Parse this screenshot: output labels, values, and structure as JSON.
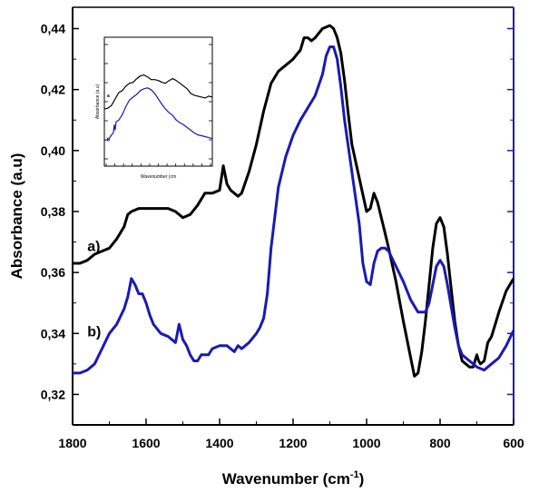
{
  "chart_data": [
    {
      "type": "line",
      "title": "",
      "xlabel": "Wavenumber (cm",
      "xlabel_sup": "-1",
      "xlabel_close": ")",
      "ylabel": "Absorbance (a.u)",
      "xlim": [
        1800,
        600
      ],
      "ylim": [
        0.31,
        0.447
      ],
      "x_ticks": [
        1800,
        1600,
        1400,
        1200,
        1000,
        800,
        600
      ],
      "x_tick_labels": [
        "1800",
        "1600",
        "1400",
        "1200",
        "1000",
        "800",
        "600"
      ],
      "y_ticks": [
        0.32,
        0.34,
        0.36,
        0.38,
        0.4,
        0.42,
        0.44
      ],
      "y_tick_labels": [
        "0,32",
        "0,34",
        "0,36",
        "0,38",
        "0,40",
        "0,42",
        "0,44"
      ],
      "grid": false,
      "colors": {
        "a": "#000000",
        "b": "#1a1ab4",
        "right_axis": "#1a1ab4"
      },
      "series": [
        {
          "name": "a)",
          "x": [
            1800,
            1780,
            1760,
            1740,
            1720,
            1700,
            1680,
            1660,
            1650,
            1640,
            1620,
            1600,
            1580,
            1560,
            1540,
            1520,
            1500,
            1480,
            1460,
            1440,
            1420,
            1400,
            1390,
            1380,
            1370,
            1360,
            1350,
            1340,
            1320,
            1300,
            1280,
            1260,
            1240,
            1220,
            1200,
            1180,
            1170,
            1160,
            1150,
            1140,
            1120,
            1100,
            1090,
            1080,
            1070,
            1060,
            1050,
            1040,
            1020,
            1000,
            990,
            980,
            970,
            960,
            950,
            940,
            920,
            900,
            880,
            870,
            860,
            850,
            840,
            830,
            820,
            810,
            800,
            790,
            780,
            770,
            760,
            750,
            740,
            720,
            710,
            700,
            695,
            690,
            680,
            670,
            660,
            650,
            640,
            620,
            600
          ],
          "y": [
            0.363,
            0.363,
            0.364,
            0.366,
            0.367,
            0.368,
            0.371,
            0.375,
            0.379,
            0.38,
            0.381,
            0.381,
            0.381,
            0.381,
            0.381,
            0.38,
            0.378,
            0.379,
            0.382,
            0.386,
            0.386,
            0.387,
            0.395,
            0.389,
            0.387,
            0.386,
            0.385,
            0.386,
            0.393,
            0.402,
            0.413,
            0.422,
            0.426,
            0.428,
            0.43,
            0.433,
            0.437,
            0.437,
            0.436,
            0.437,
            0.44,
            0.441,
            0.44,
            0.437,
            0.432,
            0.423,
            0.412,
            0.402,
            0.391,
            0.38,
            0.381,
            0.386,
            0.383,
            0.378,
            0.373,
            0.368,
            0.357,
            0.344,
            0.332,
            0.326,
            0.327,
            0.334,
            0.344,
            0.356,
            0.368,
            0.376,
            0.378,
            0.375,
            0.366,
            0.355,
            0.344,
            0.336,
            0.331,
            0.329,
            0.329,
            0.333,
            0.331,
            0.33,
            0.331,
            0.337,
            0.339,
            0.343,
            0.347,
            0.354,
            0.358
          ]
        },
        {
          "name": "b)",
          "x": [
            1800,
            1780,
            1760,
            1740,
            1720,
            1700,
            1680,
            1660,
            1650,
            1640,
            1630,
            1620,
            1610,
            1600,
            1590,
            1580,
            1560,
            1540,
            1520,
            1510,
            1500,
            1490,
            1480,
            1470,
            1460,
            1450,
            1440,
            1430,
            1420,
            1400,
            1380,
            1360,
            1350,
            1340,
            1320,
            1300,
            1290,
            1280,
            1270,
            1260,
            1240,
            1220,
            1200,
            1180,
            1160,
            1140,
            1120,
            1110,
            1100,
            1090,
            1080,
            1070,
            1060,
            1040,
            1020,
            1010,
            1000,
            990,
            980,
            970,
            960,
            950,
            940,
            920,
            900,
            880,
            860,
            840,
            830,
            820,
            810,
            800,
            790,
            780,
            770,
            760,
            750,
            740,
            720,
            700,
            680,
            670,
            660,
            640,
            620,
            600
          ],
          "y": [
            0.327,
            0.327,
            0.328,
            0.33,
            0.335,
            0.34,
            0.343,
            0.348,
            0.352,
            0.358,
            0.356,
            0.353,
            0.353,
            0.35,
            0.346,
            0.343,
            0.34,
            0.339,
            0.337,
            0.343,
            0.338,
            0.336,
            0.333,
            0.331,
            0.331,
            0.333,
            0.333,
            0.333,
            0.335,
            0.336,
            0.336,
            0.334,
            0.336,
            0.335,
            0.337,
            0.34,
            0.342,
            0.345,
            0.353,
            0.368,
            0.388,
            0.398,
            0.405,
            0.41,
            0.414,
            0.418,
            0.425,
            0.431,
            0.434,
            0.434,
            0.43,
            0.421,
            0.41,
            0.393,
            0.376,
            0.363,
            0.357,
            0.356,
            0.363,
            0.367,
            0.368,
            0.368,
            0.367,
            0.362,
            0.357,
            0.351,
            0.347,
            0.347,
            0.35,
            0.356,
            0.362,
            0.364,
            0.362,
            0.356,
            0.349,
            0.342,
            0.336,
            0.333,
            0.331,
            0.329,
            0.328,
            0.329,
            0.33,
            0.332,
            0.336,
            0.341
          ]
        }
      ],
      "annotations": [
        {
          "text": "a)",
          "x": 1760,
          "y": 0.367
        },
        {
          "text": "b)",
          "x": 1760,
          "y": 0.339
        }
      ]
    },
    {
      "type": "line",
      "title": "",
      "xlabel": "Wavenumber (cm",
      "ylabel": "Absorbance (a.u)",
      "xlim": [
        1800,
        600
      ],
      "ylim": [
        0.31,
        0.45
      ],
      "grid": false,
      "series": [
        {
          "name": "a",
          "x": [
            1800,
            1760,
            1720,
            1680,
            1640,
            1600,
            1560,
            1520,
            1480,
            1440,
            1400,
            1360,
            1320,
            1280,
            1240,
            1200,
            1160,
            1120,
            1080,
            1040,
            1000,
            960,
            920,
            880,
            840,
            800,
            760,
            720,
            680,
            640,
            600
          ],
          "y": [
            0.372,
            0.373,
            0.376,
            0.383,
            0.39,
            0.392,
            0.397,
            0.4,
            0.401,
            0.405,
            0.408,
            0.409,
            0.407,
            0.404,
            0.404,
            0.403,
            0.401,
            0.4,
            0.403,
            0.405,
            0.403,
            0.4,
            0.397,
            0.394,
            0.389,
            0.387,
            0.386,
            0.385,
            0.384,
            0.386,
            0.385
          ]
        },
        {
          "name": "b",
          "x": [
            1800,
            1760,
            1740,
            1720,
            1700,
            1690,
            1680,
            1670,
            1640,
            1600,
            1560,
            1520,
            1480,
            1440,
            1400,
            1360,
            1320,
            1280,
            1240,
            1200,
            1160,
            1120,
            1080,
            1040,
            1000,
            960,
            920,
            880,
            840,
            800,
            760,
            720,
            680,
            640,
            600
          ],
          "y": [
            0.338,
            0.339,
            0.341,
            0.344,
            0.346,
            0.355,
            0.349,
            0.358,
            0.36,
            0.366,
            0.375,
            0.382,
            0.385,
            0.388,
            0.392,
            0.394,
            0.395,
            0.393,
            0.389,
            0.383,
            0.377,
            0.372,
            0.368,
            0.365,
            0.36,
            0.357,
            0.355,
            0.352,
            0.349,
            0.346,
            0.344,
            0.343,
            0.342,
            0.341,
            0.34
          ]
        }
      ],
      "annotations": [
        {
          "text": "a",
          "x": 1770,
          "y": 0.385
        },
        {
          "text": "b",
          "x": 1770,
          "y": 0.337
        }
      ]
    }
  ]
}
